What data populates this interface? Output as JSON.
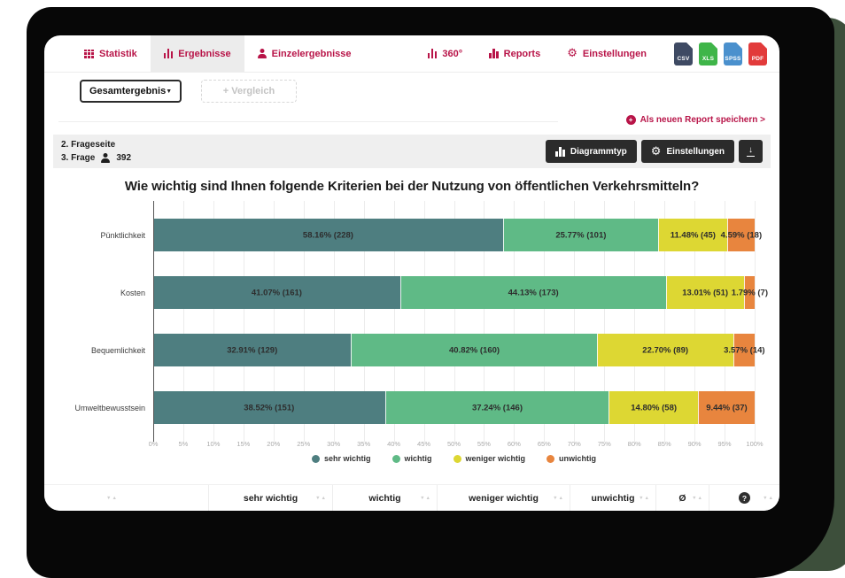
{
  "nav": {
    "items": [
      {
        "label": "Statistik",
        "icon": "table-grid",
        "active": false
      },
      {
        "label": "Ergebnisse",
        "icon": "bar-chart",
        "active": true
      },
      {
        "label": "Einzelergebnisse",
        "icon": "person",
        "active": false
      }
    ],
    "right_items": [
      {
        "label": "360°",
        "icon": "bar-chart"
      },
      {
        "label": "Reports",
        "icon": "bar-chart"
      },
      {
        "label": "Einstellungen",
        "icon": "gear"
      }
    ],
    "export_icons": [
      {
        "label": "CSV",
        "color": "#3e4a63"
      },
      {
        "label": "XLS",
        "color": "#3fb549"
      },
      {
        "label": "SPSS",
        "color": "#4a90cd"
      },
      {
        "label": "PDF",
        "color": "#e23b3b"
      }
    ],
    "accent_color": "#b81448"
  },
  "toolbar": {
    "dataset_selector": "Gesamtergebnis",
    "compare_label": "+ Vergleich",
    "save_report_label": "Als neuen Report speichern >"
  },
  "question_header": {
    "page_label": "2. Frageseite",
    "question_label": "3. Frage",
    "respondents": "392",
    "buttons": [
      {
        "label": "Diagrammtyp",
        "icon": "bar-chart"
      },
      {
        "label": "Einstellungen",
        "icon": "gear"
      }
    ]
  },
  "chart_data": {
    "type": "bar",
    "orientation": "horizontal-stacked",
    "title": "Wie wichtig sind Ihnen folgende Kriterien bei der Nutzung von öffentlichen Verkehrsmitteln?",
    "categories": [
      "Pünktlichkeit",
      "Kosten",
      "Bequemlichkeit",
      "Umweltbewusstsein"
    ],
    "series": [
      {
        "name": "sehr wichtig",
        "color": "#4e7e80",
        "values": [
          58.16,
          41.07,
          32.91,
          38.52
        ],
        "counts": [
          228,
          161,
          129,
          151
        ]
      },
      {
        "name": "wichtig",
        "color": "#5fba86",
        "values": [
          25.77,
          44.13,
          40.82,
          37.24
        ],
        "counts": [
          101,
          173,
          160,
          146
        ]
      },
      {
        "name": "weniger wichtig",
        "color": "#ddd733",
        "values": [
          11.48,
          13.01,
          22.7,
          14.8
        ],
        "counts": [
          45,
          51,
          89,
          58
        ]
      },
      {
        "name": "unwichtig",
        "color": "#e8853e",
        "values": [
          4.59,
          1.79,
          3.57,
          9.44
        ],
        "counts": [
          18,
          7,
          14,
          37
        ]
      }
    ],
    "label_format": "percent (count)",
    "xlim": [
      0,
      100
    ],
    "x_ticks": [
      "0%",
      "5%",
      "10%",
      "15%",
      "20%",
      "25%",
      "30%",
      "35%",
      "40%",
      "45%",
      "50%",
      "55%",
      "60%",
      "65%",
      "70%",
      "75%",
      "80%",
      "85%",
      "90%",
      "95%",
      "100%"
    ],
    "grid": true,
    "legend_position": "bottom"
  },
  "table": {
    "columns": [
      {
        "label": "",
        "first": true
      },
      {
        "label": "sehr wichtig"
      },
      {
        "label": "wichtig"
      },
      {
        "label": "weniger wichtig"
      },
      {
        "label": "unwichtig"
      },
      {
        "label": "Ø"
      },
      {
        "label": "?",
        "style": "circle"
      }
    ]
  }
}
